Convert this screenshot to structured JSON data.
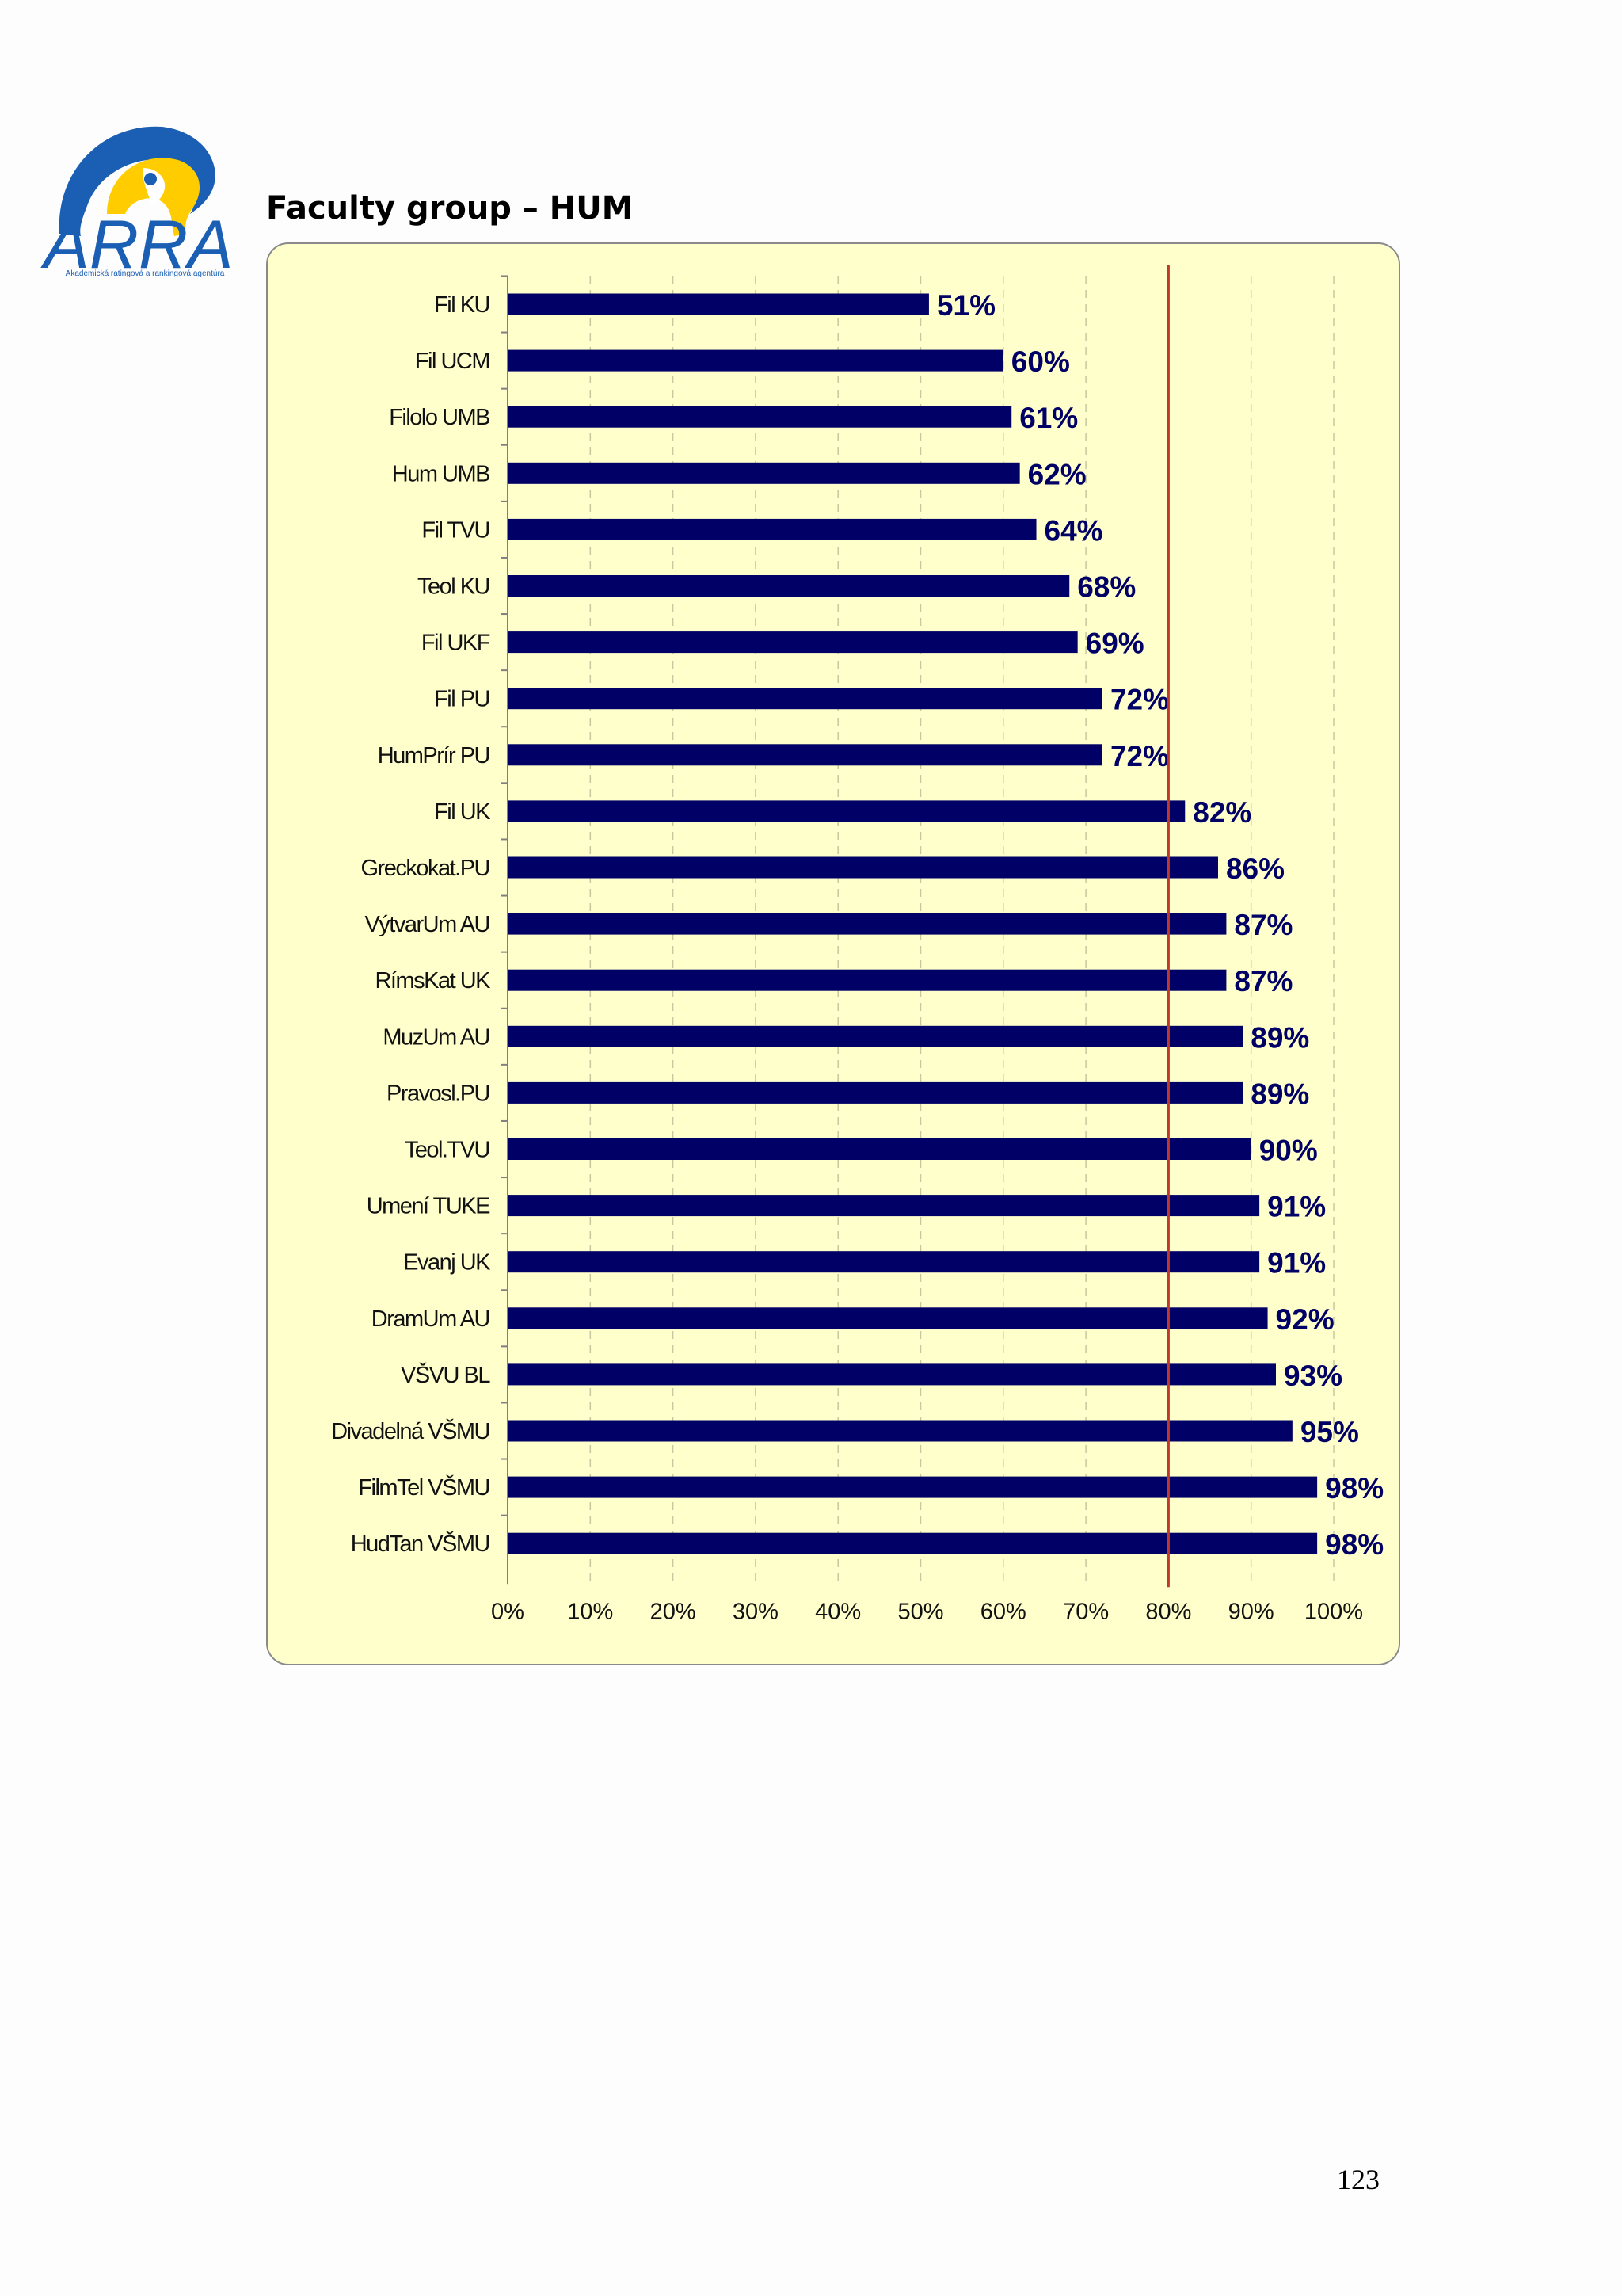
{
  "logo": {
    "text": "ARRA",
    "tagline": "Akademická ratingová a rankingová agentúra"
  },
  "page": {
    "title": "Faculty group – HUM",
    "number": "123"
  },
  "colors": {
    "bar": "#000066",
    "reference_line": "#c0392b",
    "panel_background": "#ffffcc",
    "logo_blue": "#1a5fb4",
    "logo_yellow": "#ffcc00"
  },
  "chart_data": {
    "type": "bar",
    "orientation": "horizontal",
    "categories": [
      "Fil KU",
      "Fil UCM",
      "Filolo UMB",
      "Hum UMB",
      "Fil TVU",
      "Teol KU",
      "Fil UKF",
      "Fil PU",
      "HumPrír PU",
      "Fil UK",
      "Greckokat.PU",
      "VýtvarUm AU",
      "RímsKat UK",
      "MuzUm AU",
      "Pravosl.PU",
      "Teol.TVU",
      "Umení TUKE",
      "Evanj UK",
      "DramUm AU",
      "VŠVU BL",
      "Divadelná VŠMU",
      "FilmTel VŠMU",
      "HudTan VŠMU"
    ],
    "values": [
      51,
      60,
      61,
      62,
      64,
      68,
      69,
      72,
      72,
      82,
      86,
      87,
      87,
      89,
      89,
      90,
      91,
      91,
      92,
      93,
      95,
      98,
      98
    ],
    "data_labels": [
      "51%",
      "60%",
      "61%",
      "62%",
      "64%",
      "68%",
      "69%",
      "72%",
      "72%",
      "82%",
      "86%",
      "87%",
      "87%",
      "89%",
      "89%",
      "90%",
      "91%",
      "91%",
      "92%",
      "93%",
      "95%",
      "98%",
      "98%"
    ],
    "xlim": [
      0,
      100
    ],
    "x_ticks": [
      0,
      10,
      20,
      30,
      40,
      50,
      60,
      70,
      80,
      90,
      100
    ],
    "x_tick_labels": [
      "0%",
      "10%",
      "20%",
      "30%",
      "40%",
      "50%",
      "60%",
      "70%",
      "80%",
      "90%",
      "100%"
    ],
    "reference_line": 80,
    "grid": "vertical dashed"
  }
}
